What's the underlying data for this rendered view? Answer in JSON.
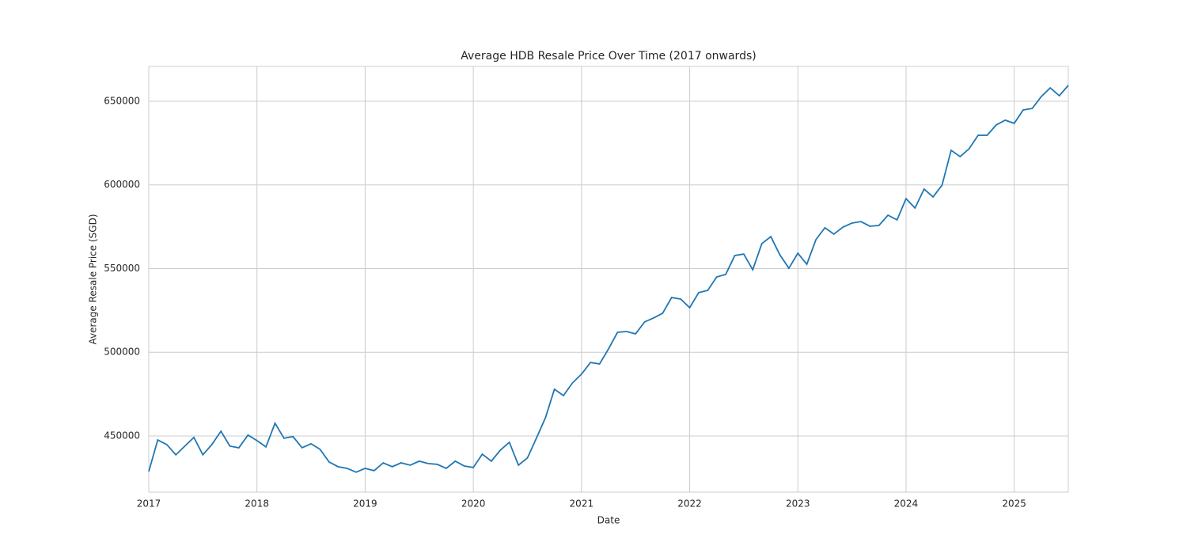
{
  "chart_data": {
    "type": "line",
    "title": "Average HDB Resale Price Over Time (2017 onwards)",
    "x_label": "Date",
    "y_label": "Average Resale Price (SGD)",
    "x": [
      2017,
      2017.083,
      2017.167,
      2017.25,
      2017.333,
      2017.417,
      2017.5,
      2017.583,
      2017.667,
      2017.75,
      2017.833,
      2017.917,
      2018,
      2018.083,
      2018.167,
      2018.25,
      2018.333,
      2018.417,
      2018.5,
      2018.583,
      2018.667,
      2018.75,
      2018.833,
      2018.917,
      2019,
      2019.083,
      2019.167,
      2019.25,
      2019.333,
      2019.417,
      2019.5,
      2019.583,
      2019.667,
      2019.75,
      2019.833,
      2019.917,
      2020,
      2020.083,
      2020.167,
      2020.25,
      2020.333,
      2020.417,
      2020.5,
      2020.583,
      2020.667,
      2020.75,
      2020.833,
      2020.917,
      2021,
      2021.083,
      2021.167,
      2021.25,
      2021.333,
      2021.417,
      2021.5,
      2021.583,
      2021.667,
      2021.75,
      2021.833,
      2021.917,
      2022,
      2022.083,
      2022.167,
      2022.25,
      2022.333,
      2022.417,
      2022.5,
      2022.583,
      2022.667,
      2022.75,
      2022.833,
      2022.917,
      2023,
      2023.083,
      2023.167,
      2023.25,
      2023.333,
      2023.417,
      2023.5,
      2023.583,
      2023.667,
      2023.75,
      2023.833,
      2023.917,
      2024,
      2024.083,
      2024.167,
      2024.25,
      2024.333,
      2024.417,
      2024.5,
      2024.583,
      2024.667,
      2024.75,
      2024.833,
      2024.917,
      2025,
      2025.083,
      2025.167,
      2025.25,
      2025.333,
      2025.417,
      2025.5
    ],
    "series": [
      {
        "name": "Average Resale Price",
        "color": "#1f77b4",
        "values": [
          428700,
          447600,
          444800,
          438700,
          443900,
          449100,
          438700,
          444800,
          452800,
          443900,
          442900,
          450500,
          447200,
          443400,
          457600,
          448600,
          449600,
          442900,
          445300,
          442000,
          434400,
          431600,
          430600,
          428300,
          430600,
          429200,
          433900,
          431600,
          433900,
          432500,
          434900,
          433500,
          433000,
          430600,
          434900,
          432000,
          431100,
          439100,
          434900,
          441500,
          446200,
          432500,
          436800,
          448600,
          460900,
          477900,
          474100,
          481700,
          486900,
          493900,
          493000,
          502000,
          511900,
          512400,
          511000,
          518100,
          520500,
          523300,
          532700,
          531800,
          526600,
          535600,
          537000,
          545000,
          546500,
          557800,
          558700,
          549300,
          564900,
          569100,
          558300,
          550200,
          559200,
          552600,
          567300,
          574400,
          570600,
          574800,
          577200,
          578100,
          575300,
          575800,
          581900,
          579100,
          591800,
          586200,
          597500,
          592800,
          599900,
          620700,
          616900,
          621600,
          629700,
          629700,
          635800,
          638700,
          636800,
          644800,
          645700,
          652800,
          658000,
          653300,
          659500
        ]
      }
    ],
    "xlim": [
      2017,
      2025.5
    ],
    "xticks": [
      2017,
      2018,
      2019,
      2020,
      2021,
      2022,
      2023,
      2024,
      2025
    ],
    "ylim": [
      416400,
      670800
    ],
    "yticks": [
      450000,
      500000,
      550000,
      600000,
      650000
    ],
    "grid": true
  }
}
